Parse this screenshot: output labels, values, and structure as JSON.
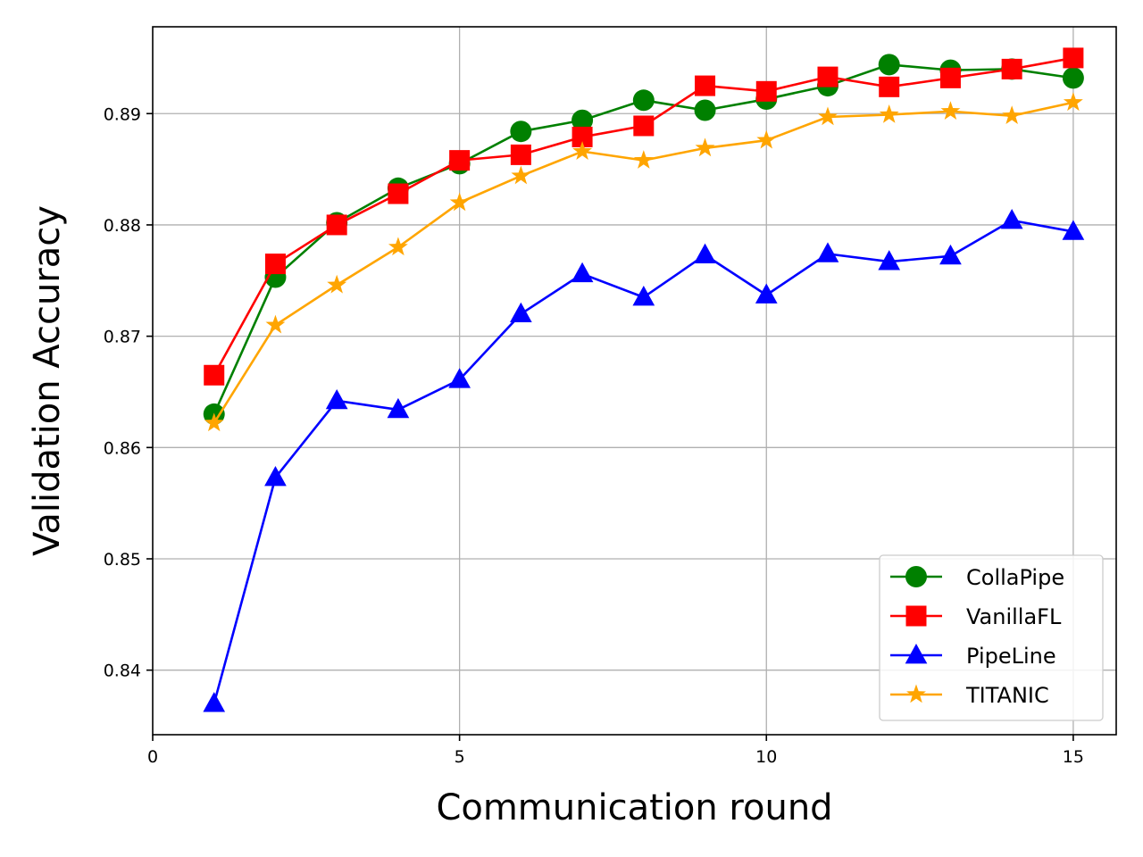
{
  "chart_data": {
    "type": "line",
    "title": "",
    "xlabel": "Communication round",
    "ylabel": "Validation Accuracy",
    "xlim": [
      0,
      15.7
    ],
    "ylim": [
      0.8342,
      0.8978
    ],
    "xticks": [
      0,
      5,
      10,
      15
    ],
    "yticks": [
      0.84,
      0.85,
      0.86,
      0.87,
      0.88,
      0.89
    ],
    "xtick_labels": [
      "0",
      "5",
      "10",
      "15"
    ],
    "ytick_labels": [
      "0.84",
      "0.85",
      "0.86",
      "0.87",
      "0.88",
      "0.89"
    ],
    "grid": true,
    "legend_position": "lower-right",
    "x": [
      1,
      2,
      3,
      4,
      5,
      6,
      7,
      8,
      9,
      10,
      11,
      12,
      13,
      14,
      15
    ],
    "series": [
      {
        "name": "CollaPipe",
        "color": "#008000",
        "marker": "circle",
        "values": [
          0.863,
          0.8753,
          0.8802,
          0.8833,
          0.8855,
          0.8884,
          0.8894,
          0.8912,
          0.8903,
          0.8913,
          0.8925,
          0.8944,
          0.8939,
          0.894,
          0.8932
        ]
      },
      {
        "name": "VanillaFL",
        "color": "#ff0000",
        "marker": "square",
        "values": [
          0.8665,
          0.8765,
          0.88,
          0.8828,
          0.8858,
          0.8863,
          0.8879,
          0.8889,
          0.8925,
          0.892,
          0.8933,
          0.8924,
          0.8932,
          0.894,
          0.895
        ]
      },
      {
        "name": "PipeLine",
        "color": "#0000ff",
        "marker": "triangle",
        "values": [
          0.837,
          0.8573,
          0.8642,
          0.8634,
          0.8661,
          0.872,
          0.8756,
          0.8735,
          0.8773,
          0.8737,
          0.8774,
          0.8767,
          0.8772,
          0.8804,
          0.8794
        ]
      },
      {
        "name": "TITANIC",
        "color": "#ffa500",
        "marker": "star",
        "values": [
          0.8622,
          0.871,
          0.8746,
          0.878,
          0.882,
          0.8844,
          0.8866,
          0.8858,
          0.8869,
          0.8876,
          0.8897,
          0.8899,
          0.8902,
          0.8898,
          0.891
        ]
      }
    ]
  }
}
